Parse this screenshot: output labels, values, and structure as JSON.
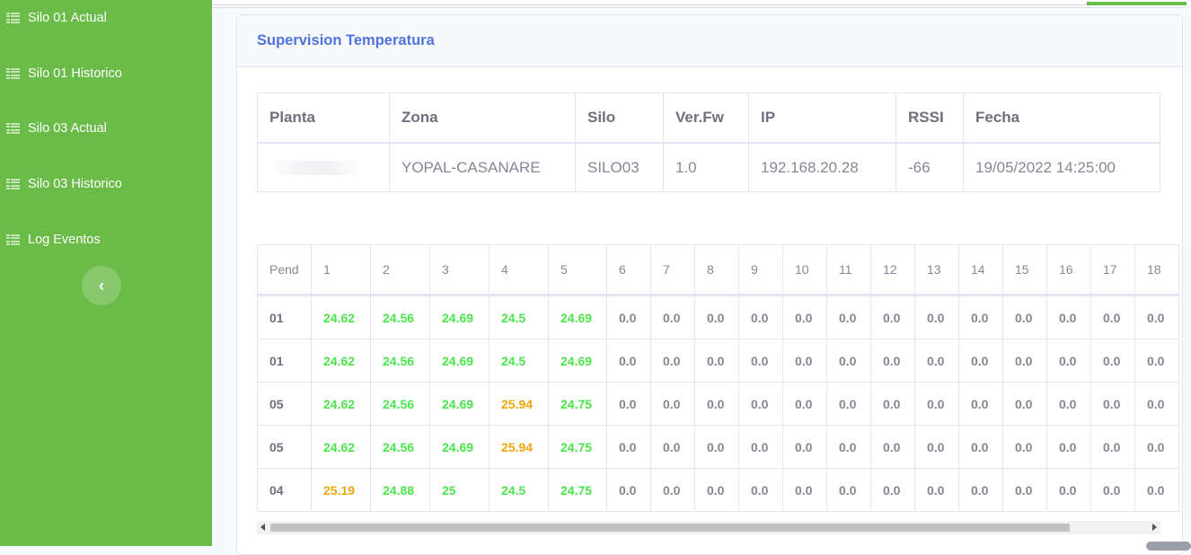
{
  "sidebar": {
    "items": [
      {
        "label": "Silo 01 Actual",
        "icon": "table-icon"
      },
      {
        "label": "Silo 01 Historico",
        "icon": "table-icon"
      },
      {
        "label": "Silo 03 Actual",
        "icon": "table-icon"
      },
      {
        "label": "Silo 03 Historico",
        "icon": "table-icon"
      },
      {
        "label": "Log Eventos",
        "icon": "table-icon"
      }
    ],
    "toggle_glyph": "‹"
  },
  "card": {
    "title": "Supervision Temperatura"
  },
  "info_table": {
    "headers": [
      "Planta",
      "Zona",
      "Silo",
      "Ver.Fw",
      "IP",
      "RSSI",
      "Fecha"
    ],
    "row": [
      "",
      "YOPAL-CASANARE",
      "SILO03",
      "1.0",
      "192.168.20.28",
      "-66",
      "19/05/2022 14:25:00"
    ]
  },
  "temp_table": {
    "headers": [
      "Pend",
      "1",
      "2",
      "3",
      "4",
      "5",
      "6",
      "7",
      "8",
      "9",
      "10",
      "11",
      "12",
      "13",
      "14",
      "15",
      "16",
      "17",
      "18"
    ],
    "rows": [
      {
        "pend": "01",
        "cells": [
          "24.62",
          "24.56",
          "24.69",
          "24.5",
          "24.69",
          "0.0",
          "0.0",
          "0.0",
          "0.0",
          "0.0",
          "0.0",
          "0.0",
          "0.0",
          "0.0",
          "0.0",
          "0.0",
          "0.0",
          "0.0"
        ],
        "status": [
          "g",
          "g",
          "g",
          "g",
          "g",
          "z",
          "z",
          "z",
          "z",
          "z",
          "z",
          "z",
          "z",
          "z",
          "z",
          "z",
          "z",
          "z"
        ]
      },
      {
        "pend": "01",
        "cells": [
          "24.62",
          "24.56",
          "24.69",
          "24.5",
          "24.69",
          "0.0",
          "0.0",
          "0.0",
          "0.0",
          "0.0",
          "0.0",
          "0.0",
          "0.0",
          "0.0",
          "0.0",
          "0.0",
          "0.0",
          "0.0"
        ],
        "status": [
          "g",
          "g",
          "g",
          "g",
          "g",
          "z",
          "z",
          "z",
          "z",
          "z",
          "z",
          "z",
          "z",
          "z",
          "z",
          "z",
          "z",
          "z"
        ]
      },
      {
        "pend": "05",
        "cells": [
          "24.62",
          "24.56",
          "24.69",
          "25.94",
          "24.75",
          "0.0",
          "0.0",
          "0.0",
          "0.0",
          "0.0",
          "0.0",
          "0.0",
          "0.0",
          "0.0",
          "0.0",
          "0.0",
          "0.0",
          "0.0"
        ],
        "status": [
          "g",
          "g",
          "g",
          "o",
          "g",
          "z",
          "z",
          "z",
          "z",
          "z",
          "z",
          "z",
          "z",
          "z",
          "z",
          "z",
          "z",
          "z"
        ]
      },
      {
        "pend": "05",
        "cells": [
          "24.62",
          "24.56",
          "24.69",
          "25.94",
          "24.75",
          "0.0",
          "0.0",
          "0.0",
          "0.0",
          "0.0",
          "0.0",
          "0.0",
          "0.0",
          "0.0",
          "0.0",
          "0.0",
          "0.0",
          "0.0"
        ],
        "status": [
          "g",
          "g",
          "g",
          "o",
          "g",
          "z",
          "z",
          "z",
          "z",
          "z",
          "z",
          "z",
          "z",
          "z",
          "z",
          "z",
          "z",
          "z"
        ]
      },
      {
        "pend": "04",
        "cells": [
          "25.19",
          "24.88",
          "25",
          "24.5",
          "24.75",
          "0.0",
          "0.0",
          "0.0",
          "0.0",
          "0.0",
          "0.0",
          "0.0",
          "0.0",
          "0.0",
          "0.0",
          "0.0",
          "0.0",
          "0.0"
        ],
        "status": [
          "o",
          "g",
          "g",
          "g",
          "g",
          "z",
          "z",
          "z",
          "z",
          "z",
          "z",
          "z",
          "z",
          "z",
          "z",
          "z",
          "z",
          "z"
        ]
      }
    ]
  },
  "colors": {
    "sidebar_bg": "#6abb48",
    "title": "#4e73df",
    "temp_normal": "#4ce64c",
    "temp_warning": "#f0a70a",
    "temp_zero": "#858796"
  }
}
